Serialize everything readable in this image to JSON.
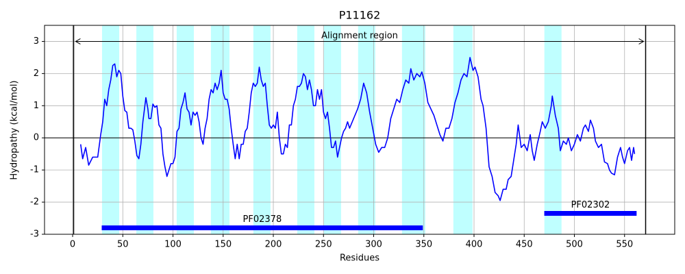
{
  "chart_data": {
    "type": "line",
    "title": "P11162",
    "xlabel": "Residues",
    "ylabel": "Hydropathy (kcal/mol)",
    "xlim": [
      -28,
      600
    ],
    "ylim": [
      -3,
      3.5
    ],
    "xticks": [
      0,
      50,
      100,
      150,
      200,
      250,
      300,
      350,
      400,
      450,
      500,
      550
    ],
    "yticks": [
      -3,
      -2,
      -1,
      0,
      1,
      2,
      3
    ],
    "grid": true,
    "color": "#0000ff",
    "x": [
      8,
      10,
      13,
      16,
      20,
      25,
      28,
      30,
      32,
      34,
      36,
      38,
      40,
      42,
      44,
      46,
      48,
      50,
      52,
      54,
      56,
      58,
      60,
      62,
      64,
      66,
      68,
      70,
      72,
      73,
      75,
      76,
      78,
      80,
      82,
      84,
      86,
      88,
      90,
      92,
      94,
      96,
      98,
      100,
      102,
      104,
      106,
      108,
      110,
      112,
      114,
      116,
      118,
      120,
      122,
      124,
      126,
      128,
      130,
      132,
      134,
      136,
      138,
      140,
      142,
      144,
      146,
      148,
      150,
      152,
      154,
      156,
      158,
      160,
      162,
      164,
      166,
      168,
      170,
      172,
      174,
      176,
      178,
      180,
      182,
      184,
      186,
      188,
      190,
      192,
      194,
      196,
      198,
      200,
      202,
      204,
      206,
      208,
      210,
      212,
      214,
      216,
      218,
      220,
      222,
      224,
      226,
      228,
      230,
      232,
      234,
      236,
      238,
      240,
      242,
      244,
      246,
      248,
      250,
      252,
      254,
      256,
      258,
      260,
      262,
      264,
      266,
      268,
      270,
      272,
      274,
      276,
      280,
      284,
      287,
      290,
      293,
      296,
      299,
      302,
      305,
      308,
      311,
      314,
      317,
      320,
      323,
      326,
      329,
      332,
      335,
      337,
      340,
      343,
      346,
      348,
      351,
      354,
      357,
      360,
      363,
      366,
      369,
      372,
      375,
      378,
      381,
      384,
      387,
      390,
      393,
      396,
      399,
      401,
      404,
      407,
      409,
      412,
      415,
      418,
      421,
      424,
      426,
      429,
      432,
      434,
      437,
      440,
      442,
      444,
      447,
      450,
      453,
      456,
      458,
      460,
      463,
      466,
      468,
      471,
      474,
      477,
      478,
      481,
      484,
      486,
      489,
      492,
      494,
      497,
      500,
      503,
      506,
      509,
      511,
      514,
      516,
      519,
      521,
      524,
      527,
      530,
      533,
      535,
      537,
      540,
      543,
      546,
      548,
      550,
      553,
      555,
      557,
      559,
      560
    ],
    "values": [
      -0.2,
      -0.65,
      -0.3,
      -0.85,
      -0.6,
      -0.6,
      0.1,
      0.5,
      1.2,
      1.0,
      1.5,
      1.8,
      2.25,
      2.3,
      1.9,
      2.1,
      2.0,
      1.3,
      0.85,
      0.8,
      0.3,
      0.3,
      0.25,
      -0.1,
      -0.55,
      -0.65,
      -0.2,
      0.5,
      1.0,
      1.25,
      0.9,
      0.6,
      0.6,
      1.05,
      0.95,
      1.0,
      0.4,
      0.3,
      -0.5,
      -0.9,
      -1.2,
      -1.0,
      -0.8,
      -0.8,
      -0.6,
      0.2,
      0.3,
      0.9,
      1.1,
      1.4,
      0.9,
      0.8,
      0.4,
      0.8,
      0.7,
      0.8,
      0.5,
      0.0,
      -0.2,
      0.3,
      0.6,
      1.2,
      1.5,
      1.4,
      1.7,
      1.5,
      1.7,
      2.1,
      1.4,
      1.2,
      1.2,
      0.9,
      0.3,
      -0.2,
      -0.65,
      -0.2,
      -0.65,
      -0.2,
      -0.2,
      0.2,
      0.3,
      0.8,
      1.4,
      1.7,
      1.6,
      1.7,
      2.2,
      1.8,
      1.6,
      1.7,
      1.0,
      0.4,
      0.3,
      0.4,
      0.3,
      0.8,
      0.0,
      -0.5,
      -0.5,
      -0.2,
      -0.3,
      0.4,
      0.4,
      1.0,
      1.2,
      1.6,
      1.6,
      1.7,
      2.0,
      1.9,
      1.5,
      1.8,
      1.5,
      1.0,
      1.0,
      1.5,
      1.2,
      1.5,
      0.8,
      0.6,
      0.8,
      0.3,
      -0.3,
      -0.3,
      -0.1,
      -0.6,
      -0.3,
      0.0,
      0.2,
      0.3,
      0.5,
      0.3,
      0.6,
      0.9,
      1.2,
      1.7,
      1.4,
      0.8,
      0.3,
      -0.2,
      -0.45,
      -0.3,
      -0.3,
      0.0,
      0.6,
      0.9,
      1.2,
      1.1,
      1.5,
      1.8,
      1.7,
      2.15,
      1.8,
      2.0,
      1.9,
      2.05,
      1.7,
      1.1,
      0.9,
      0.7,
      0.4,
      0.1,
      -0.1,
      0.3,
      0.3,
      0.6,
      1.1,
      1.4,
      1.8,
      2.0,
      1.9,
      2.5,
      2.1,
      2.2,
      1.9,
      1.2,
      1.0,
      0.3,
      -0.9,
      -1.2,
      -1.7,
      -1.8,
      -1.95,
      -1.6,
      -1.6,
      -1.3,
      -1.2,
      -0.6,
      -0.2,
      0.4,
      -0.3,
      -0.2,
      -0.4,
      0.1,
      -0.4,
      -0.7,
      -0.2,
      0.2,
      0.5,
      0.3,
      0.5,
      1.0,
      1.3,
      0.7,
      0.3,
      -0.4,
      -0.1,
      -0.2,
      0.0,
      -0.4,
      -0.2,
      0.1,
      -0.1,
      0.3,
      0.4,
      0.2,
      0.55,
      0.3,
      -0.1,
      -0.3,
      -0.2,
      -0.75,
      -0.8,
      -1.0,
      -1.1,
      -1.15,
      -0.6,
      -0.3,
      -0.6,
      -0.8,
      -0.4,
      -0.3,
      -0.7,
      -0.3,
      -0.5
    ],
    "span_color": "#bfffff",
    "spans": [
      [
        29.3,
        46.4
      ],
      [
        63.5,
        80.5
      ],
      [
        103.7,
        120.8
      ],
      [
        137.8,
        156.3
      ],
      [
        180.1,
        197.2
      ],
      [
        223.8,
        240.9
      ],
      [
        250.4,
        267.5
      ],
      [
        284.5,
        301.6
      ],
      [
        328.2,
        351.4
      ],
      [
        379.4,
        398.5
      ],
      [
        470.1,
        487.2
      ]
    ],
    "vlines": [
      1,
      571
    ],
    "hline": 0,
    "annotation": {
      "text": "Alignment region",
      "x": [
        3,
        569
      ],
      "y": 3
    },
    "domains": [
      {
        "name": "PF02378",
        "start": 29,
        "end": 349,
        "y": -2.8
      },
      {
        "name": "PF02302",
        "start": 470,
        "end": 562,
        "y": -2.35
      }
    ]
  }
}
